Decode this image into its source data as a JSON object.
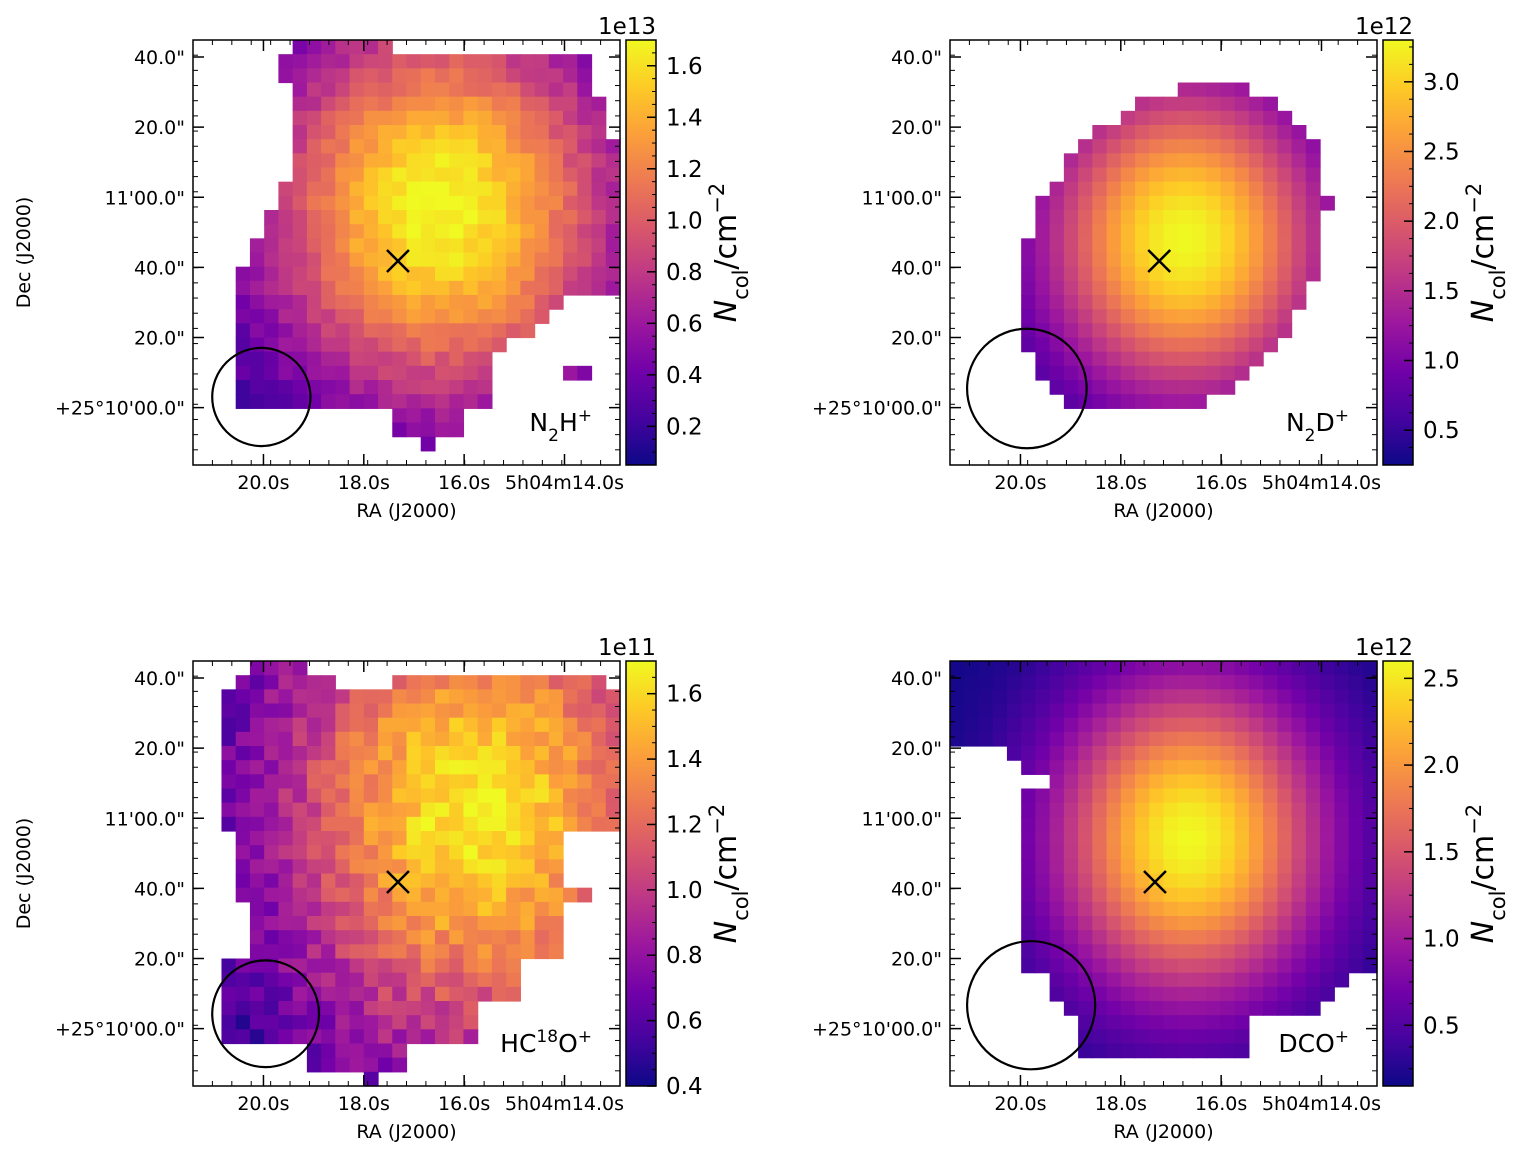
{
  "colormap": [
    "#0d0887",
    "#46039f",
    "#7201a8",
    "#9c179e",
    "#bd3786",
    "#d8576b",
    "#ed7953",
    "#fb9f3a",
    "#fdca26",
    "#f0f921"
  ],
  "chart_data": [
    {
      "type": "heatmap",
      "species": "N2H+",
      "species_label": {
        "base": "N",
        "sub": "2",
        "mid": "H",
        "sup": "+",
        "base_sup": ""
      },
      "xlabel": "RA (J2000)",
      "ylabel": "Dec (J2000)",
      "xtick_labels": [
        "20.0s",
        "18.0s",
        "16.0s",
        "5h04m14.0s"
      ],
      "ytick_labels": [
        "40.0\"",
        "20.0\"",
        "11'00.0\"",
        "40.0\"",
        "20.0\"",
        "+25°10'00.0\""
      ],
      "colorbar": {
        "label": "N_col/cm^-2",
        "exponent": "1e13",
        "min": 0.05,
        "max": 1.7,
        "ticks": [
          "0.2",
          "0.4",
          "0.6",
          "0.8",
          "1.0",
          "1.2",
          "1.4",
          "1.6"
        ],
        "tick_values": [
          0.2,
          0.4,
          0.6,
          0.8,
          1.0,
          1.2,
          1.4,
          1.6
        ]
      },
      "peak_value": 1.7,
      "peak_position": [
        0.58,
        0.4
      ],
      "spread": [
        0.3,
        0.33
      ],
      "marker": {
        "symbol": "x",
        "position": [
          0.48,
          0.52
        ]
      },
      "beam": {
        "center": [
          0.16,
          0.84
        ],
        "radius": 0.115
      },
      "noise": 0.05
    },
    {
      "type": "heatmap",
      "species": "N2D+",
      "species_label": {
        "base": "N",
        "sub": "2",
        "mid": "D",
        "sup": "+",
        "base_sup": ""
      },
      "xlabel": "RA (J2000)",
      "ylabel": "",
      "xtick_labels": [
        "20.0s",
        "18.0s",
        "16.0s",
        "5h04m14.0s"
      ],
      "ytick_labels": [
        "40.0\"",
        "20.0\"",
        "11'00.0\"",
        "40.0\"",
        "20.0\"",
        "+25°10'00.0\""
      ],
      "colorbar": {
        "label": "N_col/cm^-2",
        "exponent": "1e12",
        "min": 0.25,
        "max": 3.3,
        "ticks": [
          "0.5",
          "1.0",
          "1.5",
          "2.0",
          "2.5",
          "3.0"
        ],
        "tick_values": [
          0.5,
          1.0,
          1.5,
          2.0,
          2.5,
          3.0
        ]
      },
      "peak_value": 3.3,
      "peak_position": [
        0.55,
        0.47
      ],
      "spread": [
        0.23,
        0.26
      ],
      "marker": {
        "symbol": "x",
        "position": [
          0.49,
          0.52
        ]
      },
      "beam": {
        "center": [
          0.18,
          0.82
        ],
        "radius": 0.14
      },
      "noise": 0.0
    },
    {
      "type": "heatmap",
      "species": "HC18O+",
      "species_label": {
        "base": "HC",
        "sub": "",
        "mid": "O",
        "sup": "+",
        "base_sup": "18"
      },
      "xlabel": "RA (J2000)",
      "ylabel": "Dec (J2000)",
      "xtick_labels": [
        "20.0s",
        "18.0s",
        "16.0s",
        "5h04m14.0s"
      ],
      "ytick_labels": [
        "40.0\"",
        "20.0\"",
        "11'00.0\"",
        "40.0\"",
        "20.0\"",
        "+25°10'00.0\""
      ],
      "colorbar": {
        "label": "N_col/cm^-2",
        "exponent": "1e11",
        "min": 0.4,
        "max": 1.7,
        "ticks": [
          "0.4",
          "0.6",
          "0.8",
          "1.0",
          "1.2",
          "1.4",
          "1.6"
        ],
        "tick_values": [
          0.4,
          0.6,
          0.8,
          1.0,
          1.2,
          1.4,
          1.6
        ]
      },
      "peak_value": 1.65,
      "peak_position": [
        0.66,
        0.35
      ],
      "spread": [
        0.34,
        0.42
      ],
      "marker": {
        "symbol": "x",
        "position": [
          0.48,
          0.52
        ]
      },
      "beam": {
        "center": [
          0.17,
          0.83
        ],
        "radius": 0.125
      },
      "noise": 0.09
    },
    {
      "type": "heatmap",
      "species": "DCO+",
      "species_label": {
        "base": "DCO",
        "sub": "",
        "mid": "",
        "sup": "+",
        "base_sup": ""
      },
      "xlabel": "RA (J2000)",
      "ylabel": "",
      "xtick_labels": [
        "20.0s",
        "18.0s",
        "16.0s",
        "5h04m14.0s"
      ],
      "ytick_labels": [
        "40.0\"",
        "20.0\"",
        "11'00.0\"",
        "40.0\"",
        "20.0\"",
        "+25°10'00.0\""
      ],
      "colorbar": {
        "label": "N_col/cm^-2",
        "exponent": "1e12",
        "min": 0.15,
        "max": 2.6,
        "ticks": [
          "0.5",
          "1.0",
          "1.5",
          "2.0",
          "2.5"
        ],
        "tick_values": [
          0.5,
          1.0,
          1.5,
          2.0,
          2.5
        ]
      },
      "peak_value": 2.6,
      "peak_position": [
        0.56,
        0.42
      ],
      "spread": [
        0.22,
        0.26
      ],
      "marker": {
        "symbol": "x",
        "position": [
          0.48,
          0.52
        ]
      },
      "beam": {
        "center": [
          0.19,
          0.81
        ],
        "radius": 0.15
      },
      "noise": 0.0
    }
  ]
}
